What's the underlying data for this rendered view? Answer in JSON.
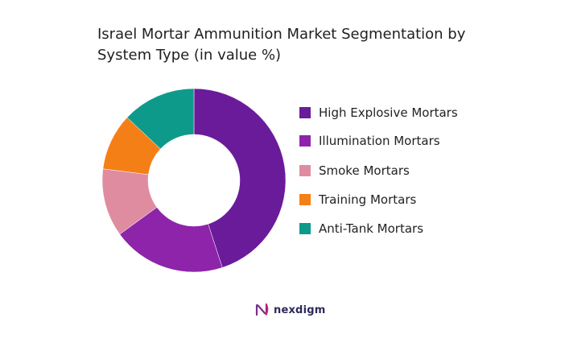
{
  "chart_data": {
    "type": "pie",
    "variant": "donut",
    "title_lines": [
      "Israel Mortar Ammunition Market Segmentation by",
      "System Type (in value %)"
    ],
    "categories": [
      "High Explosive Mortars",
      "Illumination Mortars",
      "Smoke Mortars",
      "Training Mortars",
      "Anti-Tank Mortars"
    ],
    "values": [
      45,
      20,
      12,
      10,
      13
    ],
    "colors": [
      "#6a1b9a",
      "#8e24aa",
      "#e08ca0",
      "#f57f17",
      "#0e9a8a"
    ],
    "legend_position": "right",
    "data_labels": false
  },
  "brand": {
    "name": "nexdigm",
    "logo_icon": "nexdigm-logo-icon",
    "logo_colors": [
      "#7b2d8e",
      "#e91e63"
    ]
  }
}
